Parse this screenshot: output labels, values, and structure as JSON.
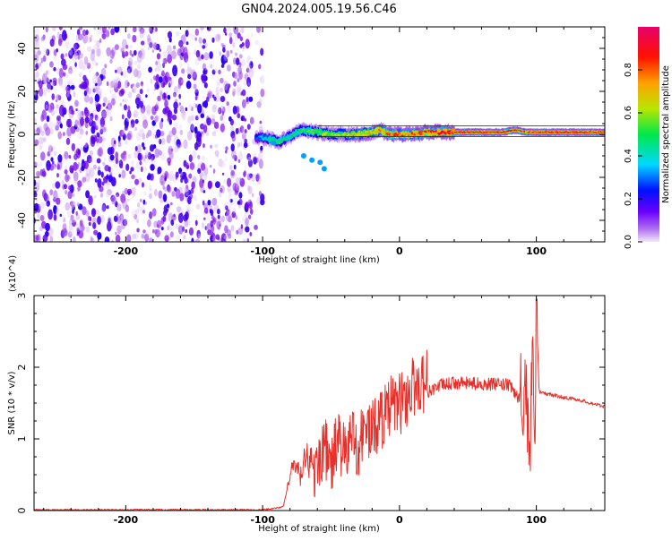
{
  "figure": {
    "title": "GN04.2024.005.19.56.C46"
  },
  "chart_data": [
    {
      "type": "heatmap",
      "name": "spectrogram",
      "xlabel": "Height of straight line (km)",
      "ylabel": "Frequency (Hz)",
      "xlim": [
        -267,
        150
      ],
      "ylim": [
        -50,
        50
      ],
      "xticks": [
        -200,
        -100,
        0,
        100
      ],
      "yticks": [
        -40,
        -20,
        0,
        20,
        40
      ],
      "colorbar": {
        "label": "Normalized spectral amplitude",
        "ticks": [
          0.0,
          0.2,
          0.4,
          0.6,
          0.8
        ],
        "range": [
          0,
          1
        ],
        "colormap": [
          "#e8d8f4",
          "#7a00e6",
          "#0000ff",
          "#00c8ff",
          "#00e050",
          "#c8e600",
          "#ff9a00",
          "#ff0000",
          "#e0005a"
        ]
      },
      "noise_region_x": [
        -267,
        -100
      ],
      "signal_track": {
        "x": [
          -105,
          -95,
          -88,
          -80,
          -72,
          -60,
          -50,
          -40,
          -30,
          -20,
          -14,
          -8,
          0,
          10,
          20,
          40,
          60,
          75,
          85,
          92,
          100,
          120,
          150
        ],
        "freq": [
          -1.5,
          -2,
          -3.5,
          -1,
          2,
          1,
          0,
          0,
          0,
          1,
          2,
          0,
          0,
          0,
          1,
          1,
          1,
          1,
          2,
          1,
          1,
          1,
          1
        ],
        "amplitude": [
          0.3,
          0.45,
          0.55,
          0.45,
          0.5,
          0.55,
          0.6,
          0.6,
          0.7,
          0.7,
          0.75,
          0.8,
          0.8,
          0.8,
          0.85,
          0.9,
          0.9,
          0.9,
          0.85,
          0.8,
          0.9,
          0.9,
          0.9
        ]
      }
    },
    {
      "type": "line",
      "name": "snr",
      "xlabel": "Height of straight line (km)",
      "ylabel": "SNR (10 * v/v)",
      "y_multiplier": "(x10^4)",
      "xlim": [
        -267,
        150
      ],
      "ylim": [
        0,
        3
      ],
      "xticks": [
        -200,
        -100,
        0,
        100
      ],
      "yticks": [
        0,
        1,
        2,
        3
      ],
      "color": "#e8302a",
      "x": [
        -267,
        -100,
        -85,
        -78,
        -72,
        -68,
        -62,
        -55,
        -50,
        -45,
        -40,
        -35,
        -30,
        -25,
        -20,
        -15,
        -10,
        -5,
        0,
        5,
        10,
        20,
        30,
        40,
        60,
        80,
        88,
        92,
        95,
        97,
        99,
        100,
        102,
        110,
        120,
        130,
        150
      ],
      "y": [
        0.01,
        0.01,
        0.05,
        0.6,
        0.4,
        0.7,
        0.35,
        0.75,
        0.4,
        0.85,
        0.55,
        0.9,
        0.7,
        1.0,
        0.9,
        1.1,
        1.15,
        1.3,
        1.3,
        1.4,
        1.55,
        1.65,
        1.75,
        1.78,
        1.77,
        1.75,
        1.55,
        1.8,
        0.8,
        2.0,
        1.3,
        2.9,
        1.65,
        1.62,
        1.58,
        1.55,
        1.45
      ]
    }
  ]
}
